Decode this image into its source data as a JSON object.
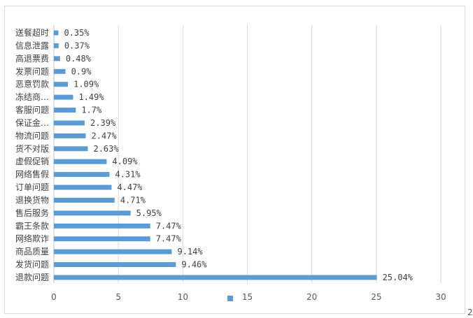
{
  "chart_data": {
    "type": "bar",
    "orientation": "horizontal",
    "title": "",
    "xlabel": "",
    "ylabel": "",
    "xlim": [
      0,
      30
    ],
    "x_ticks": [
      "0",
      "5",
      "10",
      "15",
      "20",
      "25",
      "30"
    ],
    "grid": true,
    "legend": "bottom",
    "bar_color": "#5b9bd5",
    "categories": [
      "送餐超时",
      "信息泄露",
      "高退票费",
      "发票问题",
      "恶意罚款",
      "冻结商…",
      "客服问题",
      "保证金…",
      "物流问题",
      "货不对版",
      "虚假促销",
      "网络售假",
      "订单问题",
      "退换货物",
      "售后服务",
      "霸王条款",
      "网络欺诈",
      "商品质量",
      "发货问题",
      "退款问题"
    ],
    "values": [
      0.35,
      0.37,
      0.48,
      0.9,
      1.09,
      1.49,
      1.7,
      2.39,
      2.47,
      2.63,
      4.09,
      4.31,
      4.47,
      4.71,
      5.95,
      7.47,
      7.47,
      9.14,
      9.46,
      25.04
    ],
    "data_labels": [
      "0.35%",
      "0.37%",
      "0.48%",
      "0.9%",
      "1.09%",
      "1.49%",
      "1.7%",
      "2.39%",
      "2.47%",
      "2.63%",
      "4.09%",
      "4.31%",
      "4.47%",
      "4.71%",
      "5.95%",
      "7.47%",
      "7.47%",
      "9.14%",
      "9.46%",
      "25.04%"
    ],
    "edge_text": "2"
  }
}
